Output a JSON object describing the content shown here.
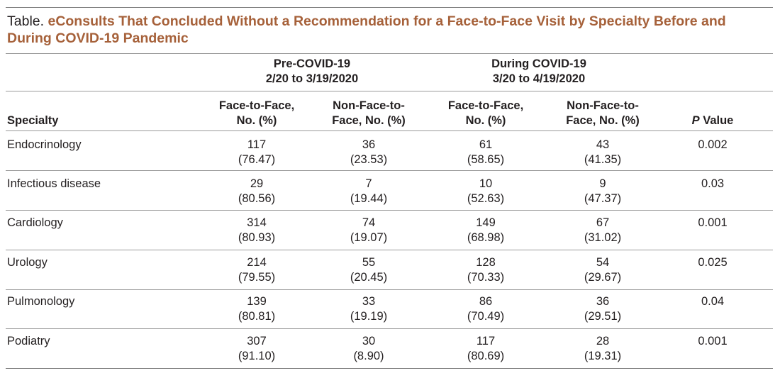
{
  "caption": {
    "label": "Table.",
    "title": "eConsults That Concluded Without a Recommendation for a Face-to-Face Visit by Specialty Before and During COVID-19 Pandemic"
  },
  "groups": [
    {
      "line1": "Pre-COVID-19",
      "line2": "2/20 to 3/19/2020"
    },
    {
      "line1": "During COVID-19",
      "line2": "3/20 to 4/19/2020"
    }
  ],
  "columns": {
    "specialty": "Specialty",
    "pre_f2f": {
      "line1": "Face-to-Face,",
      "line2": "No. (%)"
    },
    "pre_nf2f": {
      "line1": "Non-Face-to-",
      "line2": "Face, No. (%)"
    },
    "dur_f2f": {
      "line1": "Face-to-Face,",
      "line2": "No. (%)"
    },
    "dur_nf2f": {
      "line1": "Non-Face-to-",
      "line2": "Face, No. (%)"
    },
    "p_italic": "P",
    "p_rest": " Value"
  },
  "rows": [
    {
      "specialty": "Endocrinology",
      "pre_f2f": [
        "117",
        "(76.47)"
      ],
      "pre_nf2f": [
        "36",
        "(23.53)"
      ],
      "dur_f2f": [
        "61",
        "(58.65)"
      ],
      "dur_nf2f": [
        "43",
        "(41.35)"
      ],
      "p": "0.002"
    },
    {
      "specialty": "Infectious disease",
      "pre_f2f": [
        "29",
        "(80.56)"
      ],
      "pre_nf2f": [
        "7",
        "(19.44)"
      ],
      "dur_f2f": [
        "10",
        "(52.63)"
      ],
      "dur_nf2f": [
        "9",
        "(47.37)"
      ],
      "p": "0.03"
    },
    {
      "specialty": "Cardiology",
      "pre_f2f": [
        "314",
        "(80.93)"
      ],
      "pre_nf2f": [
        "74",
        "(19.07)"
      ],
      "dur_f2f": [
        "149",
        "(68.98)"
      ],
      "dur_nf2f": [
        "67",
        "(31.02)"
      ],
      "p": "0.001"
    },
    {
      "specialty": "Urology",
      "pre_f2f": [
        "214",
        "(79.55)"
      ],
      "pre_nf2f": [
        "55",
        "(20.45)"
      ],
      "dur_f2f": [
        "128",
        "(70.33)"
      ],
      "dur_nf2f": [
        "54",
        "(29.67)"
      ],
      "p": "0.025"
    },
    {
      "specialty": "Pulmonology",
      "pre_f2f": [
        "139",
        "(80.81)"
      ],
      "pre_nf2f": [
        "33",
        "(19.19)"
      ],
      "dur_f2f": [
        "86",
        "(70.49)"
      ],
      "dur_nf2f": [
        "36",
        "(29.51)"
      ],
      "p": "0.04"
    },
    {
      "specialty": "Podiatry",
      "pre_f2f": [
        "307",
        "(91.10)"
      ],
      "pre_nf2f": [
        "30",
        "(8.90)"
      ],
      "dur_f2f": [
        "117",
        "(80.69)"
      ],
      "dur_nf2f": [
        "28",
        "(19.31)"
      ],
      "p": "0.001"
    }
  ]
}
